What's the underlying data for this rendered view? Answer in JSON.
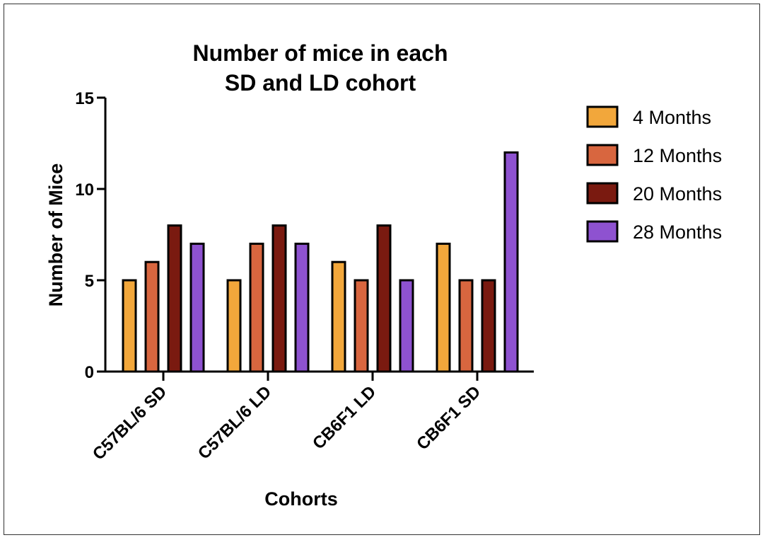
{
  "chart_data": {
    "type": "bar",
    "title_lines": [
      "Number of mice in each",
      "SD and LD cohort"
    ],
    "xlabel": "Cohorts",
    "ylabel": "Number of Mice",
    "ylim": [
      0,
      15
    ],
    "yticks": [
      "0",
      "5",
      "10",
      "15"
    ],
    "categories": [
      "C57BL/6 SD",
      "C57BL/6 LD",
      "CB6F1 LD",
      "CB6F1 SD"
    ],
    "series": [
      {
        "name": "4 Months",
        "color": "#f2a73b",
        "values": [
          5,
          5,
          6,
          7
        ]
      },
      {
        "name": "12 Months",
        "color": "#d8663f",
        "values": [
          6,
          7,
          5,
          5
        ]
      },
      {
        "name": "20 Months",
        "color": "#7a1a10",
        "values": [
          8,
          8,
          8,
          5
        ]
      },
      {
        "name": "28 Months",
        "color": "#8e52d0",
        "values": [
          7,
          7,
          5,
          12
        ]
      }
    ],
    "grid": false,
    "legend_position": "right"
  }
}
